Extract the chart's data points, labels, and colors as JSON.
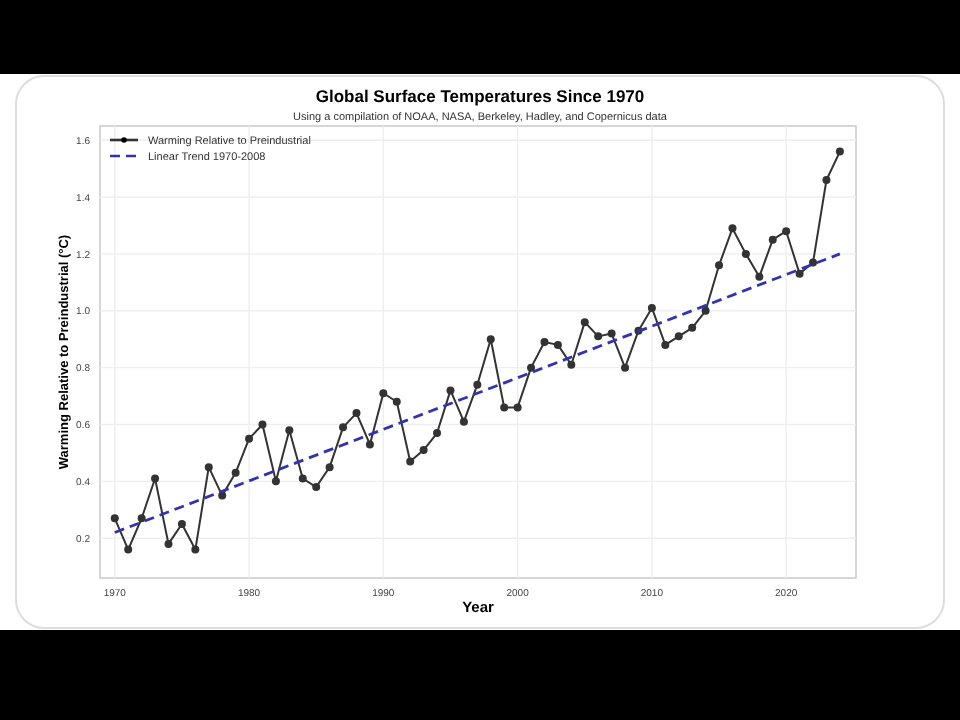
{
  "chart_data": {
    "type": "line",
    "title": "Global Surface Temperatures Since 1970",
    "subtitle": "Using a compilation of NOAA, NASA, Berkeley, Hadley, and Copernicus data",
    "xlabel": "Year",
    "ylabel": "Warming Relative to Preindustrial (°C)",
    "x": [
      1970,
      1971,
      1972,
      1973,
      1974,
      1975,
      1976,
      1977,
      1978,
      1979,
      1980,
      1981,
      1982,
      1983,
      1984,
      1985,
      1986,
      1987,
      1988,
      1989,
      1990,
      1991,
      1992,
      1993,
      1994,
      1995,
      1996,
      1997,
      1998,
      1999,
      2000,
      2001,
      2002,
      2003,
      2004,
      2005,
      2006,
      2007,
      2008,
      2009,
      2010,
      2011,
      2012,
      2013,
      2014,
      2015,
      2016,
      2017,
      2018,
      2019,
      2020,
      2021,
      2022,
      2023,
      2024
    ],
    "series": [
      {
        "name": "Warming Relative to Preindustrial",
        "color": "#333333",
        "marker": "circle",
        "line_style": "solid",
        "values": [
          0.27,
          0.16,
          0.27,
          0.41,
          0.18,
          0.25,
          0.16,
          0.45,
          0.35,
          0.43,
          0.55,
          0.6,
          0.4,
          0.58,
          0.41,
          0.38,
          0.45,
          0.59,
          0.64,
          0.53,
          0.71,
          0.68,
          0.47,
          0.51,
          0.57,
          0.72,
          0.61,
          0.74,
          0.9,
          0.66,
          0.66,
          0.8,
          0.89,
          0.88,
          0.81,
          0.96,
          0.91,
          0.92,
          0.8,
          0.93,
          1.01,
          0.88,
          0.91,
          0.94,
          1.0,
          1.16,
          1.29,
          1.2,
          1.12,
          1.25,
          1.28,
          1.13,
          1.17,
          1.46,
          1.56
        ]
      },
      {
        "name": "Linear Trend 1970-2008",
        "color": "#3333aa",
        "marker": "none",
        "line_style": "dashed",
        "x": [
          1970,
          2024
        ],
        "values": [
          0.22,
          1.2
        ]
      }
    ],
    "xlim": [
      1968.9,
      2025.2
    ],
    "ylim": [
      0.06,
      1.65
    ],
    "xticks": [
      1970,
      1980,
      1990,
      2000,
      2010,
      2020
    ],
    "yticks": [
      0.2,
      0.4,
      0.6,
      0.8,
      {
        "value": 1,
        "label": "1.0"
      },
      1.2,
      1.4,
      1.6
    ],
    "grid": true,
    "legend": "top left"
  }
}
